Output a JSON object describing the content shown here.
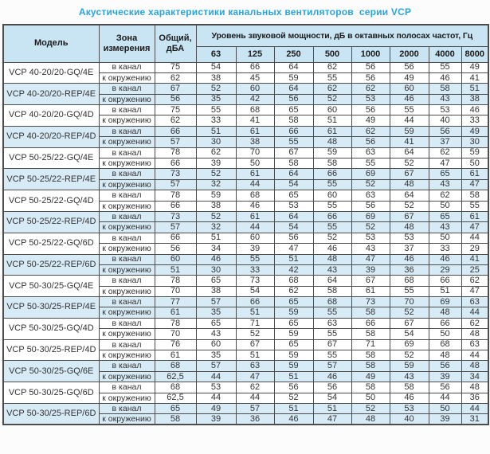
{
  "page": {
    "title": "Акустические характеристики канальных вентиляторов  серии VCP",
    "title_color": "#29a4dd"
  },
  "table": {
    "headers": {
      "model": "Модель",
      "zone": "Зона измерения",
      "total": "Общий, дБА",
      "spl": "Уровень звуковой мощности, дБ в октавных полосах частот, Гц",
      "freqs": [
        "63",
        "125",
        "250",
        "500",
        "1000",
        "2000",
        "4000",
        "8000"
      ]
    },
    "zone_labels": {
      "duct": "в канал",
      "ambient": "к окружению"
    },
    "colors": {
      "header_bg": "#c9e4f3",
      "shaded_row_bg": "#d7ebf7",
      "border": "#4c4c4c",
      "text": "#333333"
    },
    "groups": [
      {
        "model": "VCP 40-20/20-GQ/4E",
        "shaded": false,
        "rows": [
          {
            "zone": "в канал",
            "total": "75",
            "levels": [
              "54",
              "66",
              "64",
              "62",
              "56",
              "56",
              "55",
              "49"
            ]
          },
          {
            "zone": "к окружению",
            "total": "62",
            "levels": [
              "38",
              "45",
              "59",
              "55",
              "56",
              "49",
              "46",
              "41"
            ]
          }
        ]
      },
      {
        "model": "VCP 40-20/20-REP/4E",
        "shaded": true,
        "rows": [
          {
            "zone": "в канал",
            "total": "67",
            "levels": [
              "52",
              "60",
              "64",
              "62",
              "62",
              "60",
              "58",
              "51"
            ]
          },
          {
            "zone": "к окружению",
            "total": "56",
            "levels": [
              "35",
              "42",
              "56",
              "52",
              "53",
              "46",
              "43",
              "38"
            ]
          }
        ]
      },
      {
        "model": "VCP 40-20/20-GQ/4D",
        "shaded": false,
        "rows": [
          {
            "zone": "в канал",
            "total": "75",
            "levels": [
              "55",
              "68",
              "65",
              "60",
              "56",
              "55",
              "53",
              "46"
            ]
          },
          {
            "zone": "к окружению",
            "total": "62",
            "levels": [
              "33",
              "41",
              "58",
              "51",
              "49",
              "44",
              "40",
              "33"
            ]
          }
        ]
      },
      {
        "model": "VCP 40-20/20-REP/4D",
        "shaded": true,
        "rows": [
          {
            "zone": "в канал",
            "total": "66",
            "levels": [
              "51",
              "61",
              "66",
              "61",
              "62",
              "59",
              "56",
              "49"
            ]
          },
          {
            "zone": "к окружению",
            "total": "57",
            "levels": [
              "30",
              "38",
              "55",
              "48",
              "56",
              "41",
              "37",
              "30"
            ]
          }
        ]
      },
      {
        "model": "VCP 50-25/22-GQ/4E",
        "shaded": false,
        "rows": [
          {
            "zone": "в канал",
            "total": "78",
            "levels": [
              "62",
              "70",
              "67",
              "59",
              "63",
              "64",
              "62",
              "59"
            ]
          },
          {
            "zone": "к окружению",
            "total": "66",
            "levels": [
              "39",
              "50",
              "58",
              "58",
              "55",
              "52",
              "47",
              "50"
            ]
          }
        ]
      },
      {
        "model": "VCP 50-25/22-REP/4E",
        "shaded": true,
        "rows": [
          {
            "zone": "в канал",
            "total": "73",
            "levels": [
              "52",
              "61",
              "64",
              "66",
              "69",
              "67",
              "65",
              "61"
            ]
          },
          {
            "zone": "к окружению",
            "total": "57",
            "levels": [
              "32",
              "44",
              "54",
              "55",
              "52",
              "48",
              "43",
              "47"
            ]
          }
        ]
      },
      {
        "model": "VCP 50-25/22-GQ/4D",
        "shaded": false,
        "rows": [
          {
            "zone": "в канал",
            "total": "78",
            "levels": [
              "59",
              "68",
              "65",
              "60",
              "63",
              "64",
              "62",
              "58"
            ]
          },
          {
            "zone": "к окружению",
            "total": "66",
            "levels": [
              "38",
              "46",
              "53",
              "55",
              "56",
              "52",
              "50",
              "55"
            ]
          }
        ]
      },
      {
        "model": "VCP 50-25/22-REP/4D",
        "shaded": true,
        "rows": [
          {
            "zone": "в канал",
            "total": "73",
            "levels": [
              "52",
              "61",
              "64",
              "66",
              "69",
              "67",
              "65",
              "61"
            ]
          },
          {
            "zone": "к окружению",
            "total": "57",
            "levels": [
              "32",
              "44",
              "54",
              "55",
              "52",
              "48",
              "43",
              "47"
            ]
          }
        ]
      },
      {
        "model": "VCP 50-25/22-GQ/6D",
        "shaded": false,
        "rows": [
          {
            "zone": "в канал",
            "total": "66",
            "levels": [
              "51",
              "60",
              "56",
              "52",
              "53",
              "53",
              "50",
              "44"
            ]
          },
          {
            "zone": "к окружению",
            "total": "56",
            "levels": [
              "34",
              "39",
              "47",
              "46",
              "43",
              "37",
              "33",
              "29"
            ]
          }
        ]
      },
      {
        "model": "VCP 50-25/22-REP/6D",
        "shaded": true,
        "rows": [
          {
            "zone": "в канал",
            "total": "60",
            "levels": [
              "46",
              "55",
              "51",
              "48",
              "47",
              "46",
              "46",
              "41"
            ]
          },
          {
            "zone": "к окружению",
            "total": "51",
            "levels": [
              "30",
              "33",
              "42",
              "43",
              "39",
              "36",
              "29",
              "25"
            ]
          }
        ]
      },
      {
        "model": "VCP 50-30/25-GQ/4E",
        "shaded": false,
        "rows": [
          {
            "zone": "в канал",
            "total": "78",
            "levels": [
              "65",
              "73",
              "68",
              "64",
              "67",
              "68",
              "66",
              "62"
            ]
          },
          {
            "zone": "к окружению",
            "total": "70",
            "levels": [
              "38",
              "54",
              "62",
              "58",
              "61",
              "55",
              "51",
              "47"
            ]
          }
        ]
      },
      {
        "model": "VCP 50-30/25-REP/4E",
        "shaded": true,
        "rows": [
          {
            "zone": "в канал",
            "total": "77",
            "levels": [
              "57",
              "66",
              "65",
              "68",
              "73",
              "70",
              "69",
              "63"
            ]
          },
          {
            "zone": "к окружению",
            "total": "61",
            "levels": [
              "35",
              "51",
              "59",
              "55",
              "58",
              "52",
              "48",
              "44"
            ]
          }
        ]
      },
      {
        "model": "VCP 50-30/25-GQ/4D",
        "shaded": false,
        "rows": [
          {
            "zone": "в канал",
            "total": "78",
            "levels": [
              "65",
              "71",
              "65",
              "63",
              "66",
              "67",
              "66",
              "62"
            ]
          },
          {
            "zone": "к окружению",
            "total": "70",
            "levels": [
              "43",
              "52",
              "59",
              "55",
              "58",
              "54",
              "50",
              "48"
            ]
          }
        ]
      },
      {
        "model": "VCP 50-30/25-REP/4D",
        "shaded": false,
        "rows": [
          {
            "zone": "в канал",
            "total": "76",
            "levels": [
              "60",
              "67",
              "65",
              "67",
              "71",
              "69",
              "68",
              "63"
            ]
          },
          {
            "zone": "к окружению",
            "total": "61",
            "levels": [
              "35",
              "51",
              "59",
              "55",
              "58",
              "52",
              "48",
              "44"
            ]
          }
        ]
      },
      {
        "model": "VCP 50-30/25-GQ/6E",
        "shaded": true,
        "rows": [
          {
            "zone": "в канал",
            "total": "68",
            "levels": [
              "57",
              "63",
              "59",
              "57",
              "58",
              "59",
              "56",
              "48"
            ]
          },
          {
            "zone": "к окружению",
            "total": "62,5",
            "levels": [
              "44",
              "47",
              "51",
              "46",
              "49",
              "43",
              "39",
              "34"
            ]
          }
        ]
      },
      {
        "model": "VCP 50-30/25-GQ/6D",
        "shaded": false,
        "rows": [
          {
            "zone": "в канал",
            "total": "68",
            "levels": [
              "53",
              "62",
              "56",
              "56",
              "58",
              "58",
              "56",
              "48"
            ]
          },
          {
            "zone": "к окружению",
            "total": "62,5",
            "levels": [
              "44",
              "44",
              "52",
              "54",
              "50",
              "46",
              "44",
              "36"
            ]
          }
        ]
      },
      {
        "model": "VCP 50-30/25-REP/6D",
        "shaded": true,
        "rows": [
          {
            "zone": "в канал",
            "total": "65",
            "levels": [
              "49",
              "57",
              "51",
              "51",
              "52",
              "53",
              "50",
              "44"
            ]
          },
          {
            "zone": "к окружению",
            "total": "58",
            "levels": [
              "39",
              "36",
              "46",
              "47",
              "48",
              "40",
              "39",
              "31"
            ]
          }
        ]
      }
    ]
  }
}
